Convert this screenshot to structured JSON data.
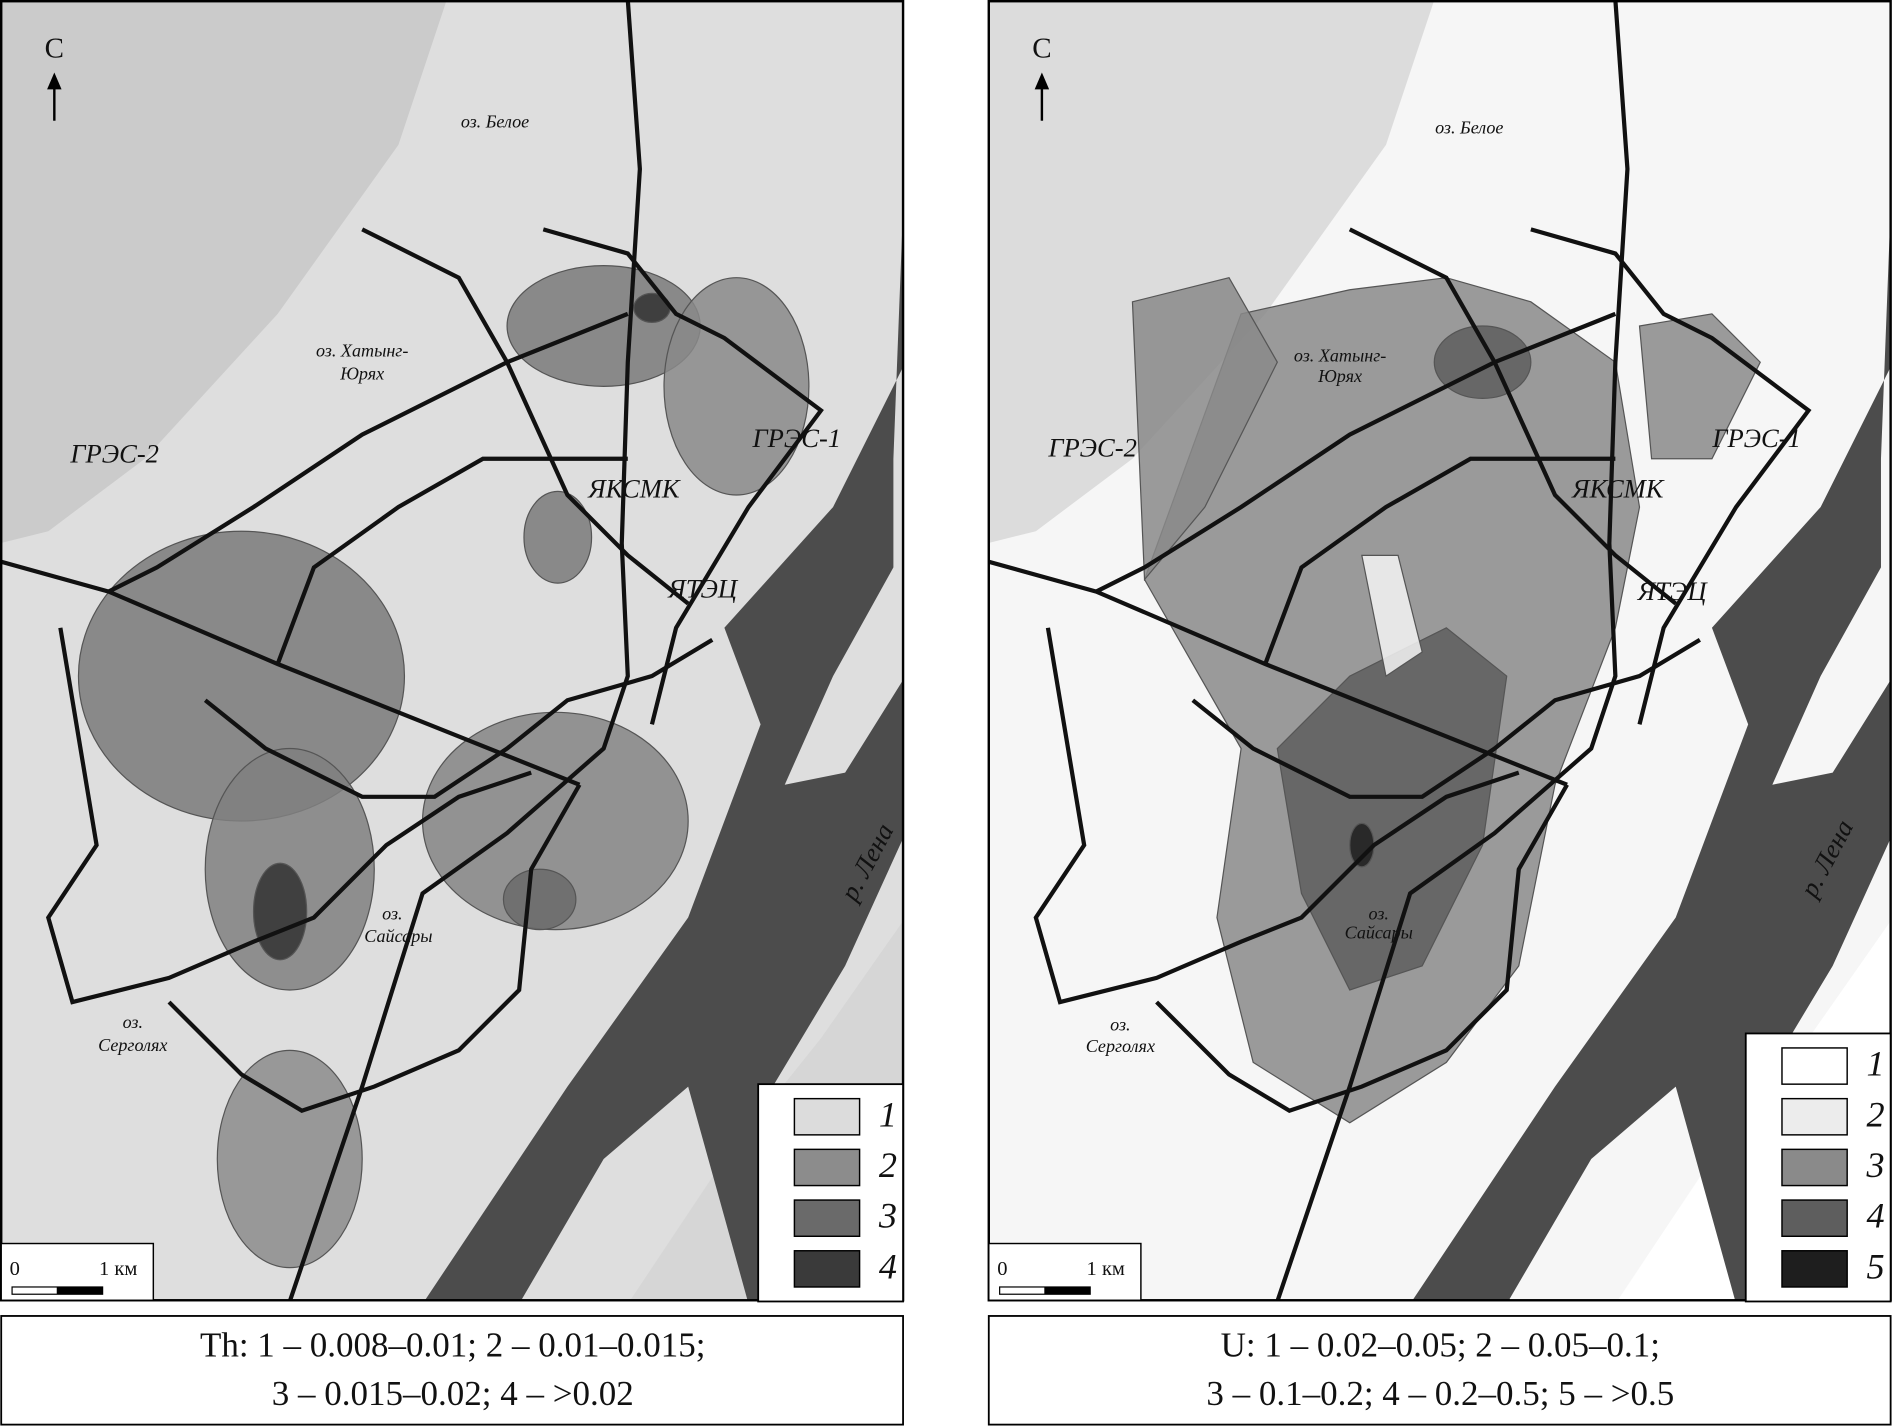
{
  "panels": [
    {
      "north": "С",
      "labels": [
        "оз. Белое",
        "оз. Хатынг-",
        "Юрях",
        "ГРЭС-2",
        "ГРЭС-1",
        "ЯКСМК",
        "ЯТЭЦ",
        "оз.",
        "Сайсары",
        "оз.",
        "Серголях",
        "р. Лена"
      ],
      "legend": [
        {
          "label": "1",
          "color": "#dcdcdc"
        },
        {
          "label": "2",
          "color": "#8c8c8c"
        },
        {
          "label": "3",
          "color": "#6a6a6a"
        },
        {
          "label": "4",
          "color": "#3a3a3a"
        }
      ],
      "scale": [
        "0",
        "1 км"
      ],
      "caption": [
        "Th: 1 – 0.008–0.01; 2 – 0.01–0.015;",
        "3 – 0.015–0.02; 4 – >0.02"
      ]
    },
    {
      "north": "С",
      "labels": [
        "оз. Белое",
        "оз. Хатынг-",
        "Юрях",
        "ГРЭС-2",
        "ГРЭС-1",
        "ЯКСМК",
        "ЯТЭЦ",
        "оз.",
        "Сайсары",
        "оз.",
        "Серголях",
        "р. Лена"
      ],
      "legend": [
        {
          "label": "1",
          "color": "#ffffff"
        },
        {
          "label": "2",
          "color": "#ececec"
        },
        {
          "label": "3",
          "color": "#8a8a8a"
        },
        {
          "label": "4",
          "color": "#5e5e5e"
        },
        {
          "label": "5",
          "color": "#1e1e1e"
        }
      ],
      "scale": [
        "0",
        "1 км"
      ],
      "caption": [
        "U: 1 – 0.02–0.05; 2 – 0.05–0.1;",
        "3 – 0.1–0.2; 4 – 0.2–0.5; 5 – >0.5"
      ]
    }
  ]
}
